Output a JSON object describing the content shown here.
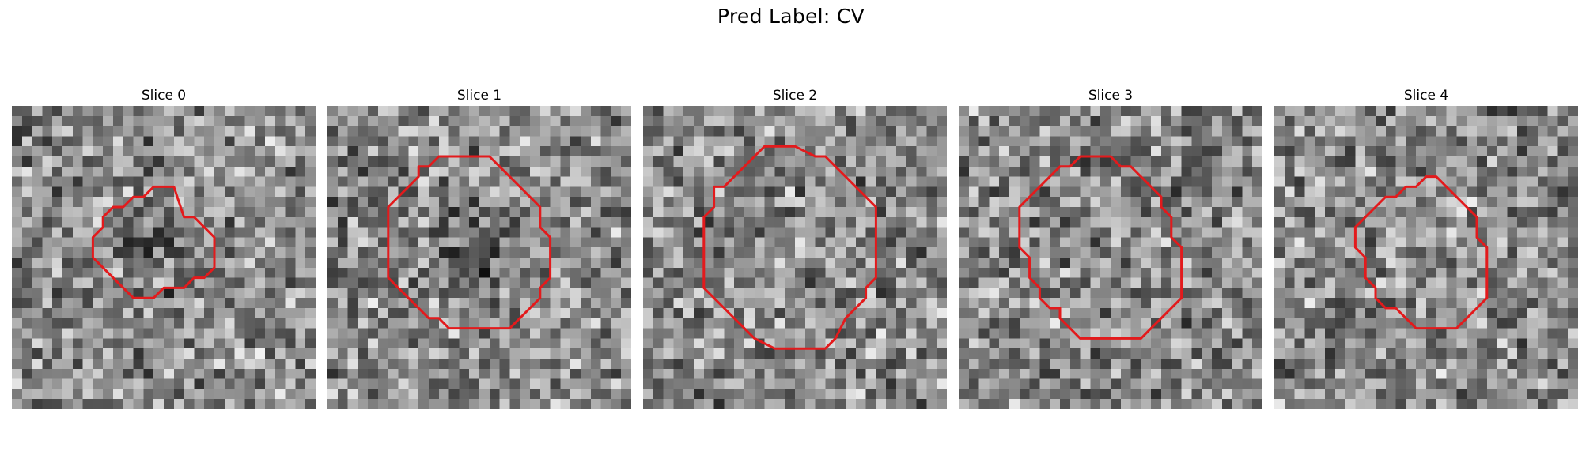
{
  "figure": {
    "title": "Pred Label: CV"
  },
  "colors": {
    "contour": "#e31a1c",
    "colormap": "gray"
  },
  "panels": [
    {
      "title": "Slice 0",
      "seed": 11,
      "dark_blob": true,
      "contour": [
        [
          17,
          11
        ],
        [
          18,
          11
        ],
        [
          19,
          12
        ],
        [
          20,
          13
        ],
        [
          20,
          16
        ],
        [
          19,
          17
        ],
        [
          18,
          17
        ],
        [
          17,
          18
        ],
        [
          15,
          18
        ],
        [
          14,
          19
        ],
        [
          12,
          19
        ],
        [
          10,
          17
        ],
        [
          9,
          16
        ],
        [
          8,
          15
        ],
        [
          8,
          13
        ],
        [
          9,
          12
        ],
        [
          9,
          11
        ],
        [
          10,
          10
        ],
        [
          11,
          10
        ],
        [
          12,
          9
        ],
        [
          13,
          9
        ],
        [
          14,
          8
        ],
        [
          16,
          8
        ]
      ]
    },
    {
      "title": "Slice 1",
      "seed": 29,
      "dark_blob": true,
      "contour": [
        [
          17,
          6
        ],
        [
          18,
          7
        ],
        [
          19,
          8
        ],
        [
          20,
          9
        ],
        [
          21,
          10
        ],
        [
          21,
          12
        ],
        [
          22,
          13
        ],
        [
          22,
          17
        ],
        [
          21,
          18
        ],
        [
          21,
          19
        ],
        [
          20,
          20
        ],
        [
          19,
          21
        ],
        [
          18,
          22
        ],
        [
          12,
          22
        ],
        [
          11,
          21
        ],
        [
          10,
          21
        ],
        [
          8,
          19
        ],
        [
          7,
          18
        ],
        [
          6,
          17
        ],
        [
          6,
          10
        ],
        [
          7,
          9
        ],
        [
          8,
          8
        ],
        [
          9,
          7
        ],
        [
          9,
          6
        ],
        [
          10,
          6
        ],
        [
          11,
          5
        ],
        [
          16,
          5
        ]
      ]
    },
    {
      "title": "Slice 2",
      "seed": 47,
      "dark_blob": false,
      "contour": [
        [
          17,
          5
        ],
        [
          18,
          5
        ],
        [
          19,
          6
        ],
        [
          20,
          7
        ],
        [
          21,
          8
        ],
        [
          22,
          9
        ],
        [
          23,
          10
        ],
        [
          23,
          17
        ],
        [
          22,
          18
        ],
        [
          22,
          19
        ],
        [
          21,
          20
        ],
        [
          20,
          21
        ],
        [
          19,
          23
        ],
        [
          18,
          24
        ],
        [
          13,
          24
        ],
        [
          11,
          23
        ],
        [
          10,
          22
        ],
        [
          9,
          21
        ],
        [
          8,
          20
        ],
        [
          7,
          19
        ],
        [
          6,
          18
        ],
        [
          6,
          11
        ],
        [
          7,
          10
        ],
        [
          7,
          8
        ],
        [
          8,
          8
        ],
        [
          9,
          7
        ],
        [
          10,
          6
        ],
        [
          11,
          5
        ],
        [
          12,
          4
        ],
        [
          15,
          4
        ]
      ]
    },
    {
      "title": "Slice 3",
      "seed": 63,
      "dark_blob": false,
      "contour": [
        [
          15,
          5
        ],
        [
          16,
          6
        ],
        [
          17,
          6
        ],
        [
          18,
          7
        ],
        [
          19,
          8
        ],
        [
          20,
          9
        ],
        [
          20,
          10
        ],
        [
          21,
          11
        ],
        [
          21,
          13
        ],
        [
          22,
          14
        ],
        [
          22,
          19
        ],
        [
          21,
          20
        ],
        [
          20,
          21
        ],
        [
          19,
          22
        ],
        [
          18,
          23
        ],
        [
          12,
          23
        ],
        [
          11,
          22
        ],
        [
          10,
          21
        ],
        [
          10,
          20
        ],
        [
          9,
          20
        ],
        [
          8,
          19
        ],
        [
          8,
          18
        ],
        [
          7,
          17
        ],
        [
          7,
          15
        ],
        [
          6,
          14
        ],
        [
          6,
          10
        ],
        [
          7,
          9
        ],
        [
          8,
          8
        ],
        [
          9,
          7
        ],
        [
          10,
          6
        ],
        [
          11,
          6
        ],
        [
          12,
          5
        ]
      ]
    },
    {
      "title": "Slice 4",
      "seed": 83,
      "dark_blob": false,
      "contour": [
        [
          17,
          8
        ],
        [
          18,
          9
        ],
        [
          19,
          10
        ],
        [
          20,
          11
        ],
        [
          20,
          13
        ],
        [
          21,
          14
        ],
        [
          21,
          19
        ],
        [
          20,
          20
        ],
        [
          19,
          21
        ],
        [
          18,
          22
        ],
        [
          16,
          22
        ],
        [
          14,
          22
        ],
        [
          13,
          21
        ],
        [
          12,
          20
        ],
        [
          11,
          20
        ],
        [
          10,
          19
        ],
        [
          10,
          18
        ],
        [
          9,
          17
        ],
        [
          9,
          15
        ],
        [
          8,
          14
        ],
        [
          8,
          12
        ],
        [
          9,
          11
        ],
        [
          10,
          10
        ],
        [
          11,
          9
        ],
        [
          12,
          9
        ],
        [
          13,
          8
        ],
        [
          14,
          8
        ],
        [
          15,
          7
        ],
        [
          16,
          7
        ]
      ]
    }
  ]
}
